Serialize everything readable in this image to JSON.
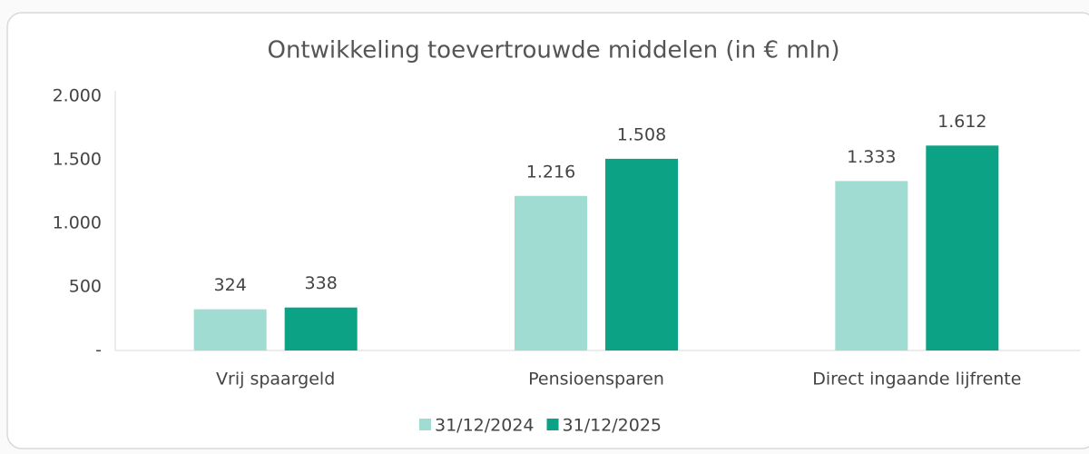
{
  "chart_data": {
    "type": "bar",
    "title": "Ontwikkeling toevertrouwde middelen (in € mln)",
    "categories": [
      "Vrij spaargeld",
      "Pensioensparen",
      "Direct ingaande lijfrente"
    ],
    "series": [
      {
        "name": "31/12/2024",
        "color": "#a0dcd2",
        "values": [
          324,
          1216,
          1333
        ],
        "value_labels": [
          "324",
          "1.216",
          "1.333"
        ]
      },
      {
        "name": "31/12/2025",
        "color": "#0ca285",
        "values": [
          338,
          1508,
          1612
        ],
        "value_labels": [
          "338",
          "1.508",
          "1.612"
        ]
      }
    ],
    "ylim": [
      0,
      2000
    ],
    "yticks": [
      {
        "value": 0,
        "label": "-"
      },
      500,
      {
        "value": 1000,
        "label": "1.000"
      },
      {
        "value": 1500,
        "label": "1.500"
      },
      {
        "value": 2000,
        "label": "2.000"
      }
    ],
    "grid": false,
    "legend": "bottom"
  }
}
